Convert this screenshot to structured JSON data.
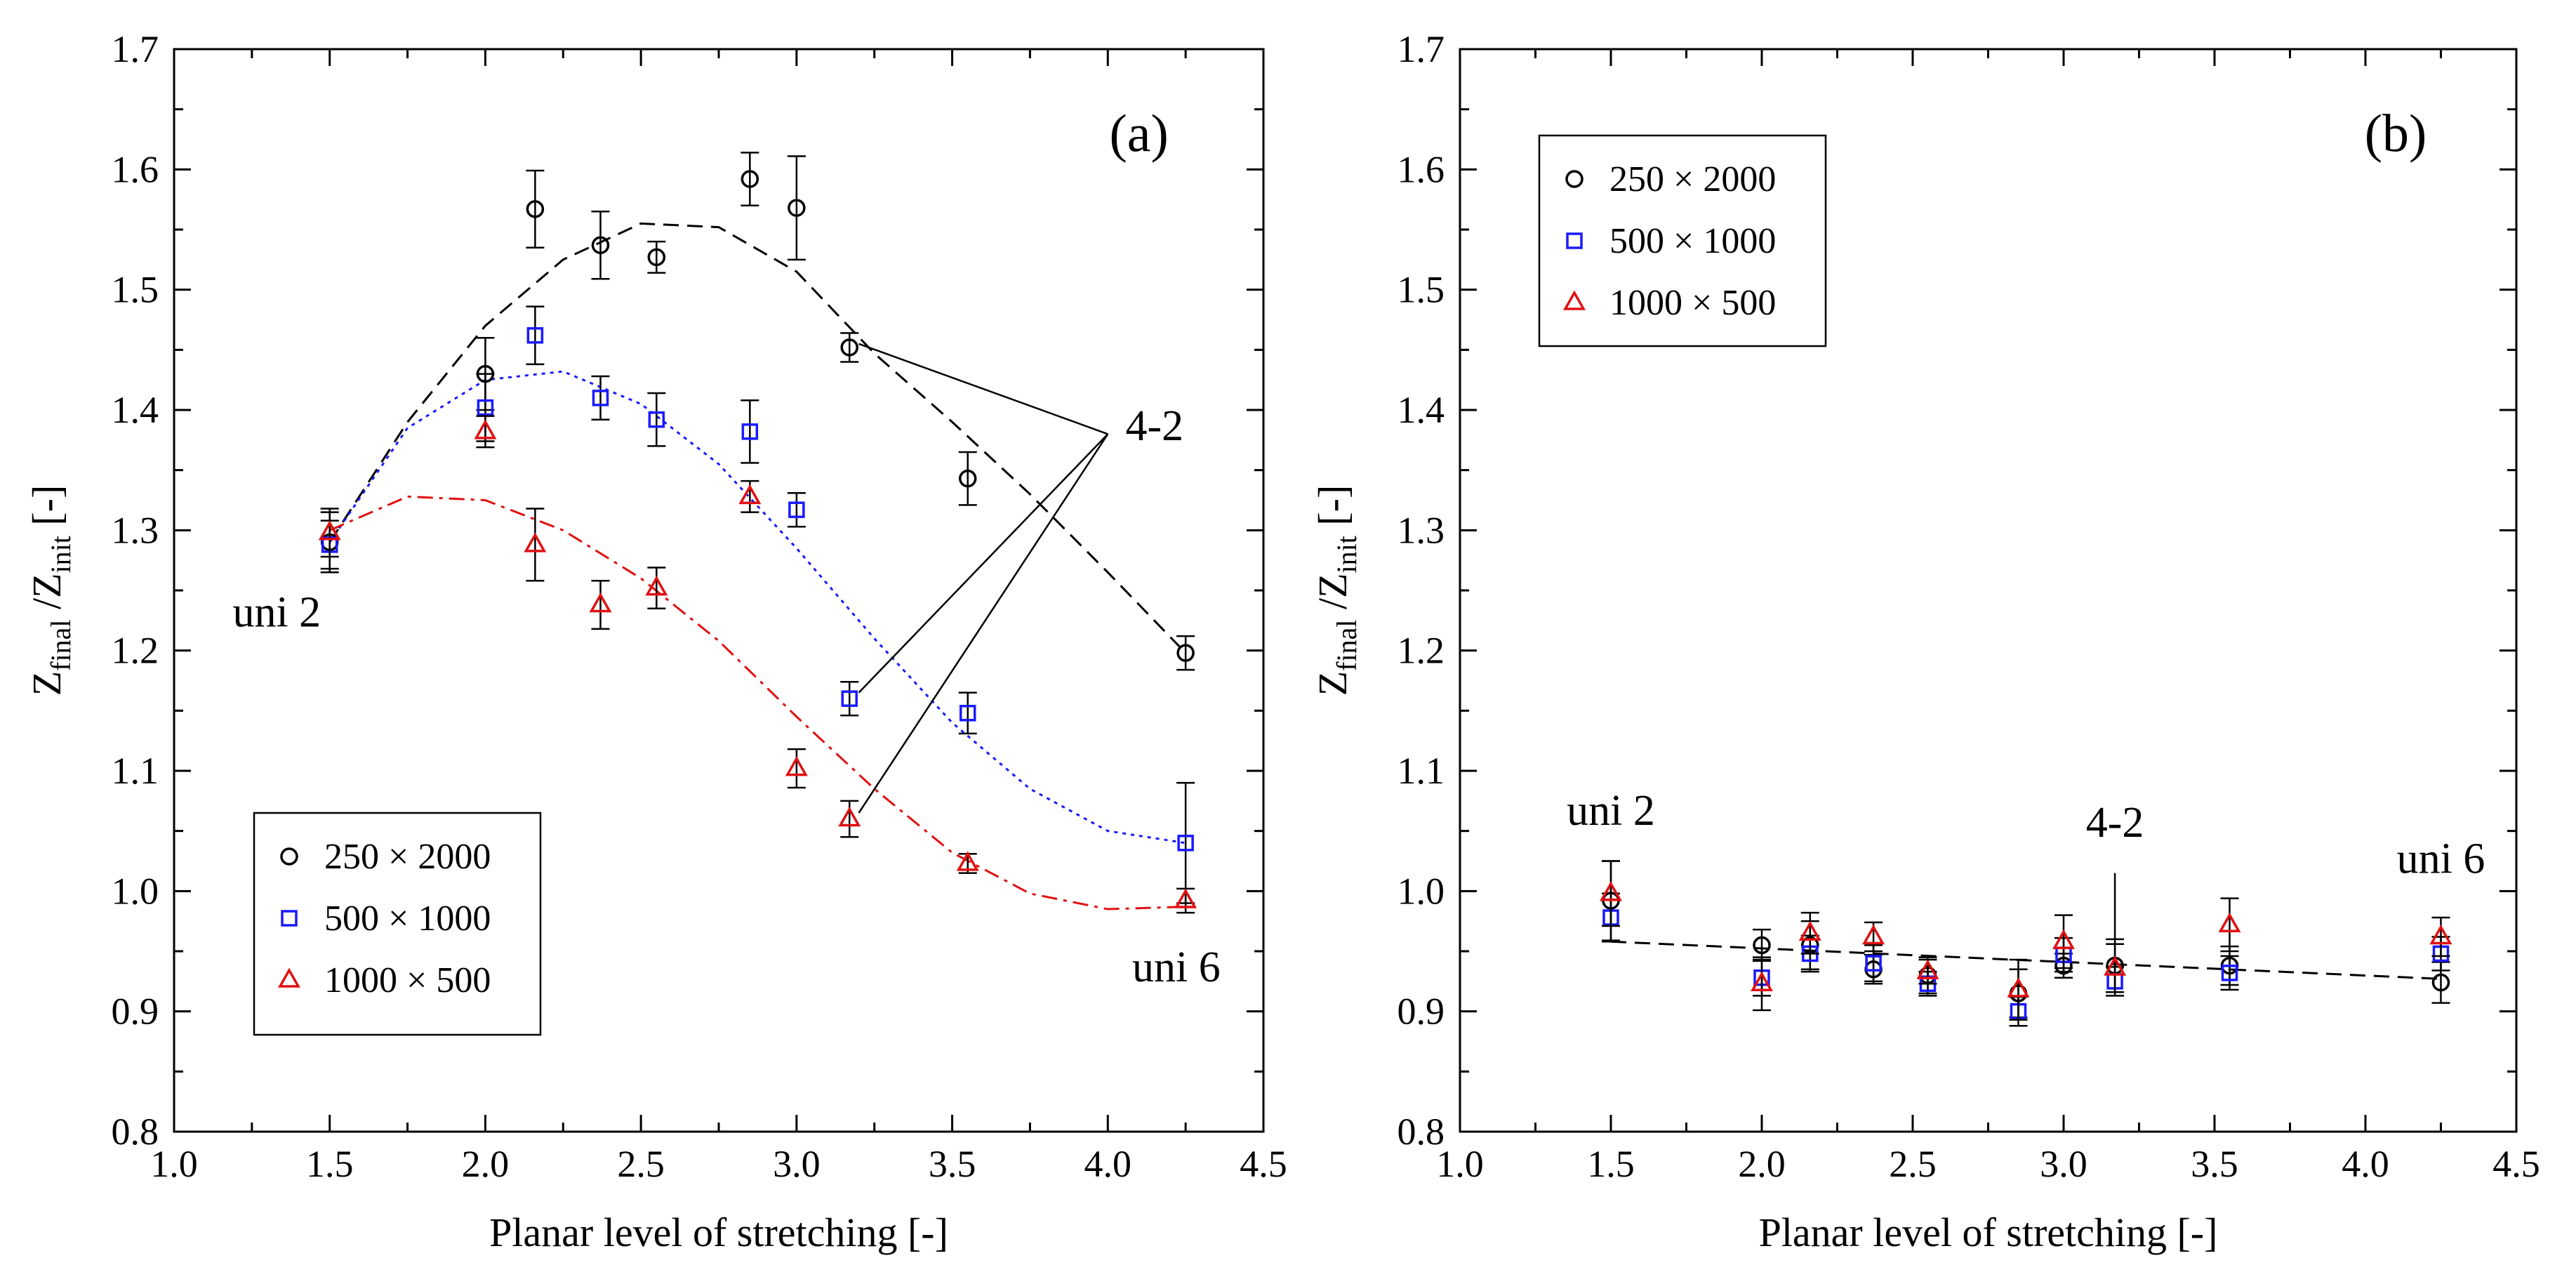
{
  "chart_data": [
    {
      "panel_label": "(a)",
      "type": "scatter",
      "xlabel": "Planar level of stretching [-]",
      "ylabel": {
        "base1": "Z",
        "sub1": "final",
        "mid": " /Z",
        "sub2": "init",
        "tail": "  [-]"
      },
      "xlim": [
        1.0,
        4.5
      ],
      "ylim": [
        0.8,
        1.7
      ],
      "xticks": [
        1.0,
        1.5,
        2.0,
        2.5,
        3.0,
        3.5,
        4.0,
        4.5
      ],
      "yticks": [
        0.8,
        0.9,
        1.0,
        1.1,
        1.2,
        1.3,
        1.4,
        1.5,
        1.6,
        1.7
      ],
      "xtick_labels": [
        "1.0",
        "1.5",
        "2.0",
        "2.5",
        "3.0",
        "3.5",
        "4.0",
        "4.5"
      ],
      "ytick_labels": [
        "0.8",
        "0.9",
        "1.0",
        "1.1",
        "1.2",
        "1.3",
        "1.4",
        "1.5",
        "1.6",
        "1.7"
      ],
      "legend": {
        "placement": "bottom-left",
        "entries": [
          "250 × 2000",
          "500 × 1000",
          "1000 × 500"
        ]
      },
      "series": [
        {
          "name": "250 × 2000",
          "marker": "circle",
          "color": "#000000",
          "x": [
            1.5,
            2.0,
            2.16,
            2.37,
            2.55,
            2.85,
            3.0,
            3.17,
            3.55,
            4.25
          ],
          "y": [
            1.29,
            1.43,
            1.567,
            1.537,
            1.527,
            1.592,
            1.568,
            1.452,
            1.343,
            1.198
          ],
          "err": [
            0.025,
            0.03,
            0.032,
            0.028,
            0.013,
            0.022,
            0.043,
            0.012,
            0.022,
            0.014
          ],
          "fit": {
            "style": "dashed",
            "x": [
              1.5,
              1.75,
              2.0,
              2.25,
              2.5,
              2.75,
              3.0,
              3.25,
              3.5,
              3.75,
              4.0,
              4.25
            ],
            "y": [
              1.29,
              1.39,
              1.47,
              1.525,
              1.555,
              1.552,
              1.515,
              1.447,
              1.39,
              1.33,
              1.265,
              1.198
            ]
          }
        },
        {
          "name": "500 × 1000",
          "marker": "square",
          "color": "#1a1aff",
          "x": [
            1.5,
            2.0,
            2.16,
            2.37,
            2.55,
            2.85,
            3.0,
            3.17,
            3.55,
            4.25
          ],
          "y": [
            1.288,
            1.402,
            1.462,
            1.41,
            1.392,
            1.382,
            1.317,
            1.16,
            1.148,
            1.04
          ],
          "err": [
            0.02,
            0.028,
            0.024,
            0.018,
            0.022,
            0.026,
            0.014,
            0.014,
            0.017,
            0.05
          ],
          "fit": {
            "style": "dotted",
            "x": [
              1.5,
              1.75,
              2.0,
              2.25,
              2.5,
              2.75,
              3.0,
              3.25,
              3.5,
              3.75,
              4.0,
              4.25
            ],
            "y": [
              1.29,
              1.385,
              1.425,
              1.432,
              1.405,
              1.355,
              1.285,
              1.21,
              1.14,
              1.085,
              1.05,
              1.04
            ]
          }
        },
        {
          "name": "1000 × 500",
          "marker": "triangle",
          "color": "#e01010",
          "x": [
            1.5,
            2.0,
            2.16,
            2.37,
            2.55,
            2.85,
            3.0,
            3.17,
            3.55,
            4.25
          ],
          "y": [
            1.298,
            1.382,
            1.288,
            1.238,
            1.252,
            1.328,
            1.102,
            1.06,
            1.023,
            0.992
          ],
          "err": [
            0.02,
            0.013,
            0.03,
            0.02,
            0.017,
            0.013,
            0.016,
            0.015,
            0.008,
            0.01
          ],
          "fit": {
            "style": "dash-dot",
            "x": [
              1.5,
              1.75,
              2.0,
              2.25,
              2.5,
              2.75,
              3.0,
              3.25,
              3.5,
              3.75,
              4.0,
              4.25
            ],
            "y": [
              1.3,
              1.328,
              1.325,
              1.3,
              1.26,
              1.208,
              1.145,
              1.085,
              1.032,
              0.998,
              0.985,
              0.987
            ]
          }
        }
      ],
      "annotations": [
        {
          "text": "uni 2",
          "x": 1.33,
          "y": 1.22
        },
        {
          "text": "4-2",
          "x": 4.15,
          "y": 1.375
        },
        {
          "text": "uni 6",
          "x": 4.22,
          "y": 0.925
        }
      ],
      "pointer_lines": {
        "hub": [
          4.0,
          1.38
        ],
        "targets": [
          [
            3.2,
            1.455
          ],
          [
            3.2,
            1.165
          ],
          [
            3.2,
            1.065
          ]
        ]
      }
    },
    {
      "panel_label": "(b)",
      "type": "scatter",
      "xlabel": "Planar level of stretching [-]",
      "ylabel": {
        "base1": "Z",
        "sub1": "final",
        "mid": " /Z",
        "sub2": "init",
        "tail": "  [-]"
      },
      "xlim": [
        1.0,
        4.5
      ],
      "ylim": [
        0.8,
        1.7
      ],
      "xticks": [
        1.0,
        1.5,
        2.0,
        2.5,
        3.0,
        3.5,
        4.0,
        4.5
      ],
      "yticks": [
        0.8,
        0.9,
        1.0,
        1.1,
        1.2,
        1.3,
        1.4,
        1.5,
        1.6,
        1.7
      ],
      "xtick_labels": [
        "1.0",
        "1.5",
        "2.0",
        "2.5",
        "3.0",
        "3.5",
        "4.0",
        "4.5"
      ],
      "ytick_labels": [
        "0.8",
        "0.9",
        "1.0",
        "1.1",
        "1.2",
        "1.3",
        "1.4",
        "1.5",
        "1.6",
        "1.7"
      ],
      "legend": {
        "placement": "top-left",
        "entries": [
          "250 × 2000",
          "500 × 1000",
          "1000 × 500"
        ]
      },
      "series": [
        {
          "name": "250 × 2000",
          "marker": "circle",
          "color": "#000000",
          "x": [
            1.5,
            2.0,
            2.16,
            2.37,
            2.55,
            2.85,
            3.0,
            3.17,
            3.55,
            4.25
          ],
          "y": [
            0.992,
            0.955,
            0.955,
            0.935,
            0.93,
            0.915,
            0.938,
            0.938,
            0.938,
            0.924
          ],
          "err": [
            0.033,
            0.013,
            0.02,
            0.012,
            0.015,
            0.02,
            0.01,
            0.022,
            0.016,
            0.017
          ]
        },
        {
          "name": "500 × 1000",
          "marker": "square",
          "color": "#1a1aff",
          "x": [
            1.5,
            2.0,
            2.16,
            2.37,
            2.55,
            2.85,
            3.0,
            3.17,
            3.55,
            4.25
          ],
          "y": [
            0.978,
            0.928,
            0.948,
            0.94,
            0.923,
            0.9,
            0.947,
            0.925,
            0.932,
            0.948
          ],
          "err": [
            0.02,
            0.015,
            0.015,
            0.015,
            0.01,
            0.012,
            0.014,
            0.012,
            0.014,
            0.014
          ]
        },
        {
          "name": "1000 × 500",
          "marker": "triangle",
          "color": "#e01010",
          "x": [
            1.5,
            2.0,
            2.16,
            2.37,
            2.55,
            2.85,
            3.0,
            3.17,
            3.55,
            4.25
          ],
          "y": [
            0.998,
            0.923,
            0.965,
            0.962,
            0.933,
            0.918,
            0.958,
            0.936,
            0.972,
            0.962
          ],
          "err": [
            0.027,
            0.022,
            0.017,
            0.012,
            0.01,
            0.025,
            0.022,
            0.02,
            0.022,
            0.016
          ]
        }
      ],
      "fit": {
        "style": "dashed",
        "x": [
          1.5,
          4.25
        ],
        "y": [
          0.958,
          0.927
        ]
      },
      "annotations": [
        {
          "text": "uni 2",
          "x": 1.5,
          "y": 1.055
        },
        {
          "text": "4-2",
          "x": 3.17,
          "y": 1.045
        },
        {
          "text": "uni 6",
          "x": 4.25,
          "y": 1.015
        }
      ],
      "pointer_lines": {
        "vertical": {
          "x": 3.17,
          "from": 0.96,
          "to": 1.015
        }
      }
    }
  ]
}
